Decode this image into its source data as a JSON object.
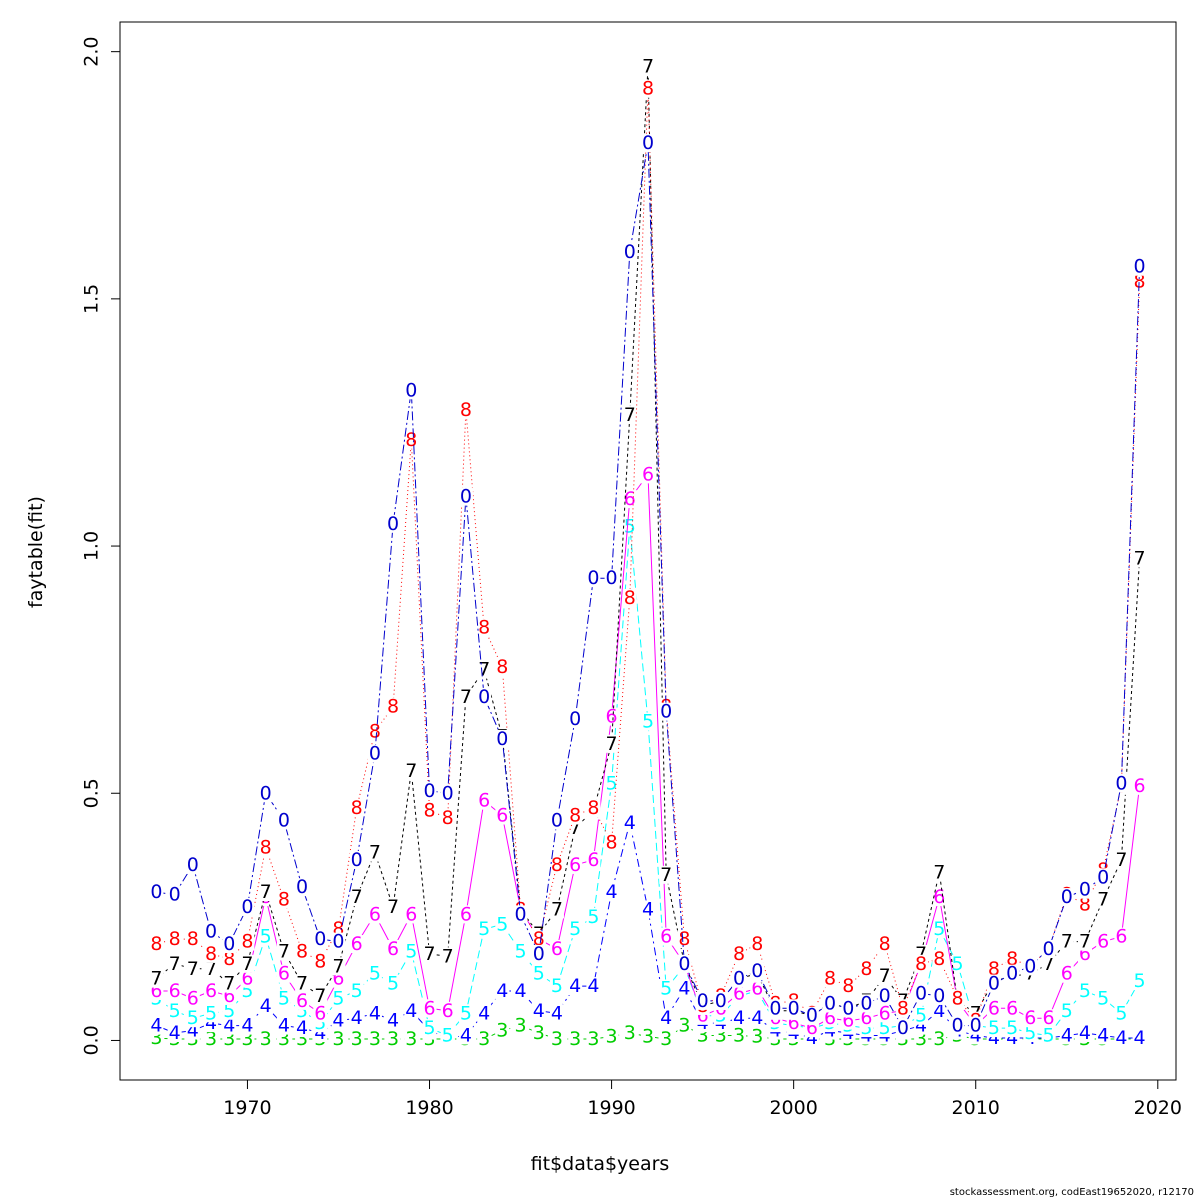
{
  "chart_data": {
    "type": "line",
    "title": "",
    "xlabel": "fit$data$years",
    "ylabel": "faytable(fit)",
    "xlim": [
      1963,
      2021
    ],
    "ylim": [
      -0.08,
      2.06
    ],
    "xticks": [
      1970,
      1980,
      1990,
      2000,
      2010,
      2020
    ],
    "yticks": [
      0.0,
      0.5,
      1.0,
      1.5,
      2.0
    ],
    "ytick_labels": [
      "0.0",
      "0.5",
      "1.0",
      "1.5",
      "2.0"
    ],
    "grid": false,
    "legend": "none",
    "x": [
      1965,
      1966,
      1967,
      1968,
      1969,
      1970,
      1971,
      1972,
      1973,
      1974,
      1975,
      1976,
      1977,
      1978,
      1979,
      1980,
      1981,
      1982,
      1983,
      1984,
      1985,
      1986,
      1987,
      1988,
      1989,
      1990,
      1991,
      1992,
      1993,
      1994,
      1995,
      1996,
      1997,
      1998,
      1999,
      2000,
      2001,
      2002,
      2003,
      2004,
      2005,
      2006,
      2007,
      2008,
      2009,
      2010,
      2011,
      2012,
      2013,
      2014,
      2015,
      2016,
      2017,
      2018,
      2019
    ],
    "series": [
      {
        "name": "3",
        "color": "#00cd00",
        "dash": "4 4",
        "values": [
          0.005,
          0.003,
          0.003,
          0.003,
          0.003,
          0.003,
          0.003,
          0.003,
          0.003,
          0.003,
          0.003,
          0.003,
          0.003,
          0.003,
          0.003,
          0.003,
          0.003,
          0.003,
          0.003,
          0.02,
          0.03,
          0.015,
          0.003,
          0.003,
          0.003,
          0.008,
          0.015,
          0.008,
          0.003,
          0.03,
          0.01,
          0.01,
          0.01,
          0.008,
          0.003,
          0.003,
          0.003,
          0.003,
          0.003,
          0.003,
          0.003,
          0.003,
          0.003,
          0.003,
          0.01,
          0.003,
          0.003,
          0.003,
          0.003,
          0.003,
          0.003,
          0.003,
          0.003,
          0.003,
          0.003
        ]
      },
      {
        "name": "4",
        "color": "#0000ff",
        "dash": "2 4 8 4",
        "values": [
          0.03,
          0.015,
          0.02,
          0.035,
          0.03,
          0.03,
          0.07,
          0.03,
          0.025,
          0.015,
          0.04,
          0.045,
          0.055,
          0.04,
          0.06,
          0.02,
          0.005,
          0.01,
          0.055,
          0.1,
          0.1,
          0.06,
          0.055,
          0.11,
          0.11,
          0.3,
          0.44,
          0.265,
          0.045,
          0.105,
          0.035,
          0.035,
          0.045,
          0.045,
          0.02,
          0.015,
          0.005,
          0.02,
          0.015,
          0.01,
          0.01,
          0.02,
          0.03,
          0.06,
          0.02,
          0.01,
          0.005,
          0.005,
          0.005,
          0.005,
          0.01,
          0.015,
          0.01,
          0.005,
          0.005
        ]
      },
      {
        "name": "5",
        "color": "#00ffff",
        "dash": "8 4",
        "values": [
          0.085,
          0.06,
          0.045,
          0.055,
          0.06,
          0.1,
          0.21,
          0.085,
          0.06,
          0.035,
          0.085,
          0.1,
          0.135,
          0.115,
          0.18,
          0.025,
          0.01,
          0.055,
          0.225,
          0.235,
          0.18,
          0.135,
          0.11,
          0.225,
          0.25,
          0.52,
          1.04,
          0.645,
          0.105,
          0.15,
          0.05,
          0.05,
          0.09,
          0.1,
          0.035,
          0.03,
          0.025,
          0.035,
          0.03,
          0.025,
          0.025,
          0.03,
          0.05,
          0.225,
          0.155,
          0.03,
          0.025,
          0.025,
          0.015,
          0.01,
          0.06,
          0.1,
          0.085,
          0.055,
          0.12
        ]
      },
      {
        "name": "6",
        "color": "#ff00ff",
        "dash": "",
        "values": [
          0.1,
          0.1,
          0.085,
          0.1,
          0.09,
          0.125,
          0.29,
          0.135,
          0.08,
          0.055,
          0.125,
          0.195,
          0.255,
          0.185,
          0.255,
          0.065,
          0.06,
          0.255,
          0.485,
          0.455,
          0.265,
          0.205,
          0.185,
          0.355,
          0.365,
          0.655,
          1.095,
          1.145,
          0.21,
          0.155,
          0.05,
          0.065,
          0.095,
          0.105,
          0.045,
          0.035,
          0.025,
          0.045,
          0.04,
          0.045,
          0.055,
          0.06,
          0.155,
          0.29,
          0.08,
          0.03,
          0.065,
          0.065,
          0.045,
          0.045,
          0.135,
          0.175,
          0.2,
          0.21,
          0.515
        ]
      },
      {
        "name": "7",
        "color": "#000000",
        "dash": "3 3",
        "values": [
          0.125,
          0.155,
          0.145,
          0.145,
          0.115,
          0.155,
          0.3,
          0.18,
          0.115,
          0.09,
          0.15,
          0.29,
          0.38,
          0.27,
          0.545,
          0.175,
          0.17,
          0.695,
          0.75,
          0.615,
          0.265,
          0.215,
          0.265,
          0.43,
          0.465,
          0.6,
          1.265,
          1.97,
          0.335,
          0.155,
          0.07,
          0.08,
          0.125,
          0.135,
          0.06,
          0.06,
          0.05,
          0.075,
          0.065,
          0.08,
          0.13,
          0.08,
          0.175,
          0.34,
          0.08,
          0.055,
          0.12,
          0.13,
          0.135,
          0.155,
          0.2,
          0.2,
          0.285,
          0.365,
          0.975
        ]
      },
      {
        "name": "8",
        "color": "#ff0000",
        "dash": "1 3",
        "values": [
          0.195,
          0.205,
          0.205,
          0.175,
          0.165,
          0.2,
          0.39,
          0.285,
          0.18,
          0.16,
          0.225,
          0.47,
          0.625,
          0.675,
          1.215,
          0.465,
          0.45,
          1.275,
          0.835,
          0.755,
          0.265,
          0.205,
          0.355,
          0.455,
          0.47,
          0.4,
          0.895,
          1.925,
          0.675,
          0.205,
          0.07,
          0.09,
          0.175,
          0.195,
          0.075,
          0.08,
          0.055,
          0.125,
          0.11,
          0.145,
          0.195,
          0.065,
          0.155,
          0.165,
          0.085,
          0.04,
          0.145,
          0.165,
          0.15,
          0.185,
          0.295,
          0.275,
          0.345,
          0.515,
          1.535
        ]
      },
      {
        "name": "0",
        "color": "#0000cd",
        "dash": "9 3 2 3",
        "values": [
          0.3,
          0.295,
          0.355,
          0.22,
          0.195,
          0.27,
          0.5,
          0.445,
          0.31,
          0.205,
          0.2,
          0.365,
          0.58,
          1.045,
          1.315,
          0.505,
          0.5,
          1.1,
          0.695,
          0.61,
          0.255,
          0.175,
          0.445,
          0.65,
          0.935,
          0.935,
          1.595,
          1.815,
          0.665,
          0.155,
          0.08,
          0.08,
          0.125,
          0.14,
          0.065,
          0.065,
          0.05,
          0.075,
          0.065,
          0.075,
          0.09,
          0.025,
          0.095,
          0.09,
          0.03,
          0.03,
          0.115,
          0.135,
          0.15,
          0.185,
          0.29,
          0.305,
          0.33,
          0.52,
          1.565
        ]
      }
    ]
  },
  "credit": "stockassessment.org, codEast19652020, r12170"
}
